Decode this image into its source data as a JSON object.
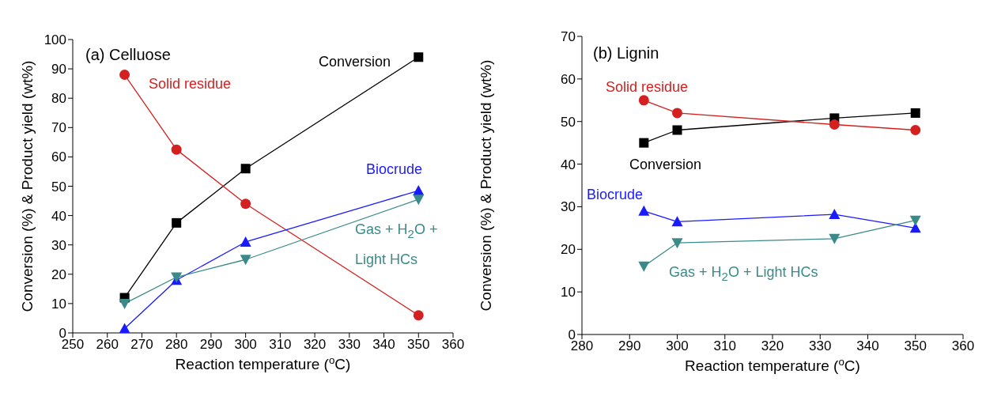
{
  "chart_data": [
    {
      "type": "line",
      "title": "(a) Celluose",
      "xlabel": "Reaction temperature ($^{o}$C)",
      "ylabel": "Conversion (%) & Product yield (wt%)",
      "x": [
        265,
        280,
        300,
        350
      ],
      "xlim": [
        250,
        360
      ],
      "xticks": [
        250,
        260,
        270,
        280,
        290,
        300,
        310,
        320,
        330,
        340,
        350,
        360
      ],
      "ylim": [
        0,
        100
      ],
      "yticks": [
        0,
        10,
        20,
        30,
        40,
        50,
        60,
        70,
        80,
        90,
        100
      ],
      "grid": false,
      "line_style": "solid",
      "series": [
        {
          "name": "Conversion",
          "color": "#000000",
          "marker": "square",
          "values": [
            12,
            37.5,
            56,
            94
          ]
        },
        {
          "name": "Solid residue",
          "color": "#d42020",
          "marker": "circle",
          "values": [
            88,
            62.5,
            44,
            6
          ]
        },
        {
          "name": "Biocrude",
          "color": "#1a1aff",
          "marker": "triangle",
          "values": [
            1.5,
            18,
            31,
            48.5
          ]
        },
        {
          "name": "Gas + H$_{2}$O + Light HCs",
          "color": "#3a8a8a",
          "marker": "triangle-down",
          "values": [
            10,
            19,
            25,
            45.5
          ]
        }
      ]
    },
    {
      "type": "line",
      "title": "(b) Lignin",
      "xlabel": "Reaction temperature ($^{o}$C)",
      "ylabel": "Conversion (%) & Product yield (wt%)",
      "x": [
        293,
        300,
        333,
        350
      ],
      "xlim": [
        280,
        360
      ],
      "xticks": [
        280,
        290,
        300,
        310,
        320,
        330,
        340,
        350,
        360
      ],
      "ylim": [
        0,
        70
      ],
      "yticks": [
        0,
        10,
        20,
        30,
        40,
        50,
        60,
        70
      ],
      "grid": false,
      "line_style": "solid",
      "series": [
        {
          "name": "Conversion",
          "color": "#000000",
          "marker": "square",
          "values": [
            45,
            48,
            50.8,
            52
          ]
        },
        {
          "name": "Solid residue",
          "color": "#d42020",
          "marker": "circle",
          "values": [
            55,
            52,
            49.3,
            48
          ]
        },
        {
          "name": "Biocrude",
          "color": "#1a1aff",
          "marker": "triangle",
          "values": [
            29,
            26.5,
            28.2,
            25
          ]
        },
        {
          "name": "Gas + H$_{2}$O + Light HCs",
          "color": "#3a8a8a",
          "marker": "triangle-down",
          "values": [
            16,
            21.5,
            22.5,
            26.8
          ]
        }
      ]
    }
  ]
}
